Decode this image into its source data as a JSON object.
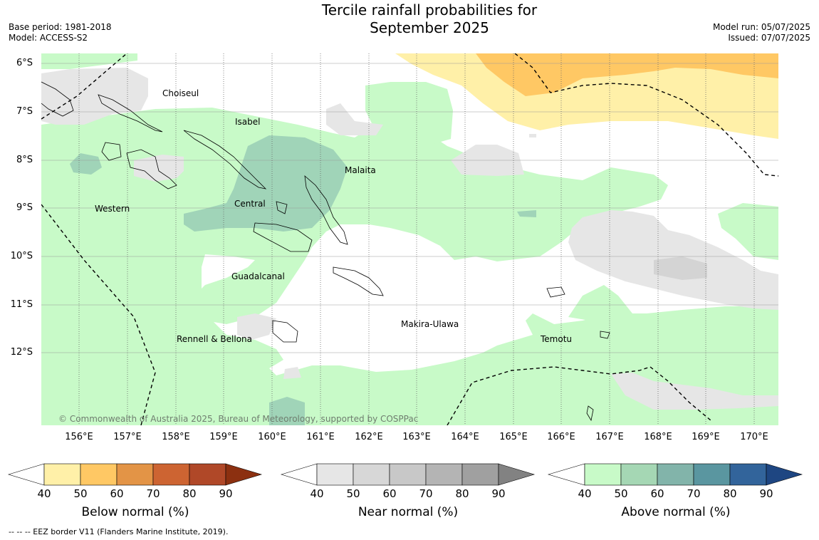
{
  "title_line1": "Tercile rainfall probabilities for",
  "title_line2": "September 2025",
  "base_period": "Base period: 1981-2018",
  "model": "Model: ACCESS-S2",
  "model_run": "Model run: 05/07/2025",
  "issued": "Issued: 07/07/2025",
  "lat_labels": [
    "6°S",
    "7°S",
    "8°S",
    "9°S",
    "10°S",
    "11°S",
    "12°S"
  ],
  "lon_labels": [
    "156°E",
    "157°E",
    "158°E",
    "159°E",
    "160°E",
    "161°E",
    "162°E",
    "163°E",
    "164°E",
    "165°E",
    "166°E",
    "167°E",
    "168°E",
    "169°E",
    "170°E"
  ],
  "regions": {
    "choiseul": "Choiseul",
    "isabel": "Isabel",
    "malaita": "Malaita",
    "western": "Western",
    "central": "Central",
    "guadalcanal": "Guadalcanal",
    "makira": "Makira-Ulawa",
    "rennell": "Rennell & Bellona",
    "temotu": "Temotu"
  },
  "copyright": "© Commonwealth of Australia 2025, Bureau of Meteorology, supported by COSPPac",
  "colorbars": [
    {
      "title": "Below normal (%)",
      "ticks": [
        "40",
        "50",
        "60",
        "70",
        "80",
        "90"
      ],
      "colors": [
        "#fff0a8",
        "#ffc864",
        "#e39446",
        "#cd6432",
        "#b04828",
        "#8c3010"
      ]
    },
    {
      "title": "Near normal (%)",
      "ticks": [
        "40",
        "50",
        "60",
        "70",
        "80",
        "90"
      ],
      "colors": [
        "#e6e6e6",
        "#d7d7d7",
        "#c8c8c8",
        "#b4b4b4",
        "#a0a0a0",
        "#828282"
      ]
    },
    {
      "title": "Above normal (%)",
      "ticks": [
        "40",
        "50",
        "60",
        "70",
        "80",
        "90"
      ],
      "colors": [
        "#c8fac8",
        "#a5d7b4",
        "#82b4aa",
        "#5a96a0",
        "#32649b",
        "#1e4682"
      ]
    }
  ],
  "footnote": "--  --  -- EEZ border V11 (Flanders Marine Institute, 2019)."
}
